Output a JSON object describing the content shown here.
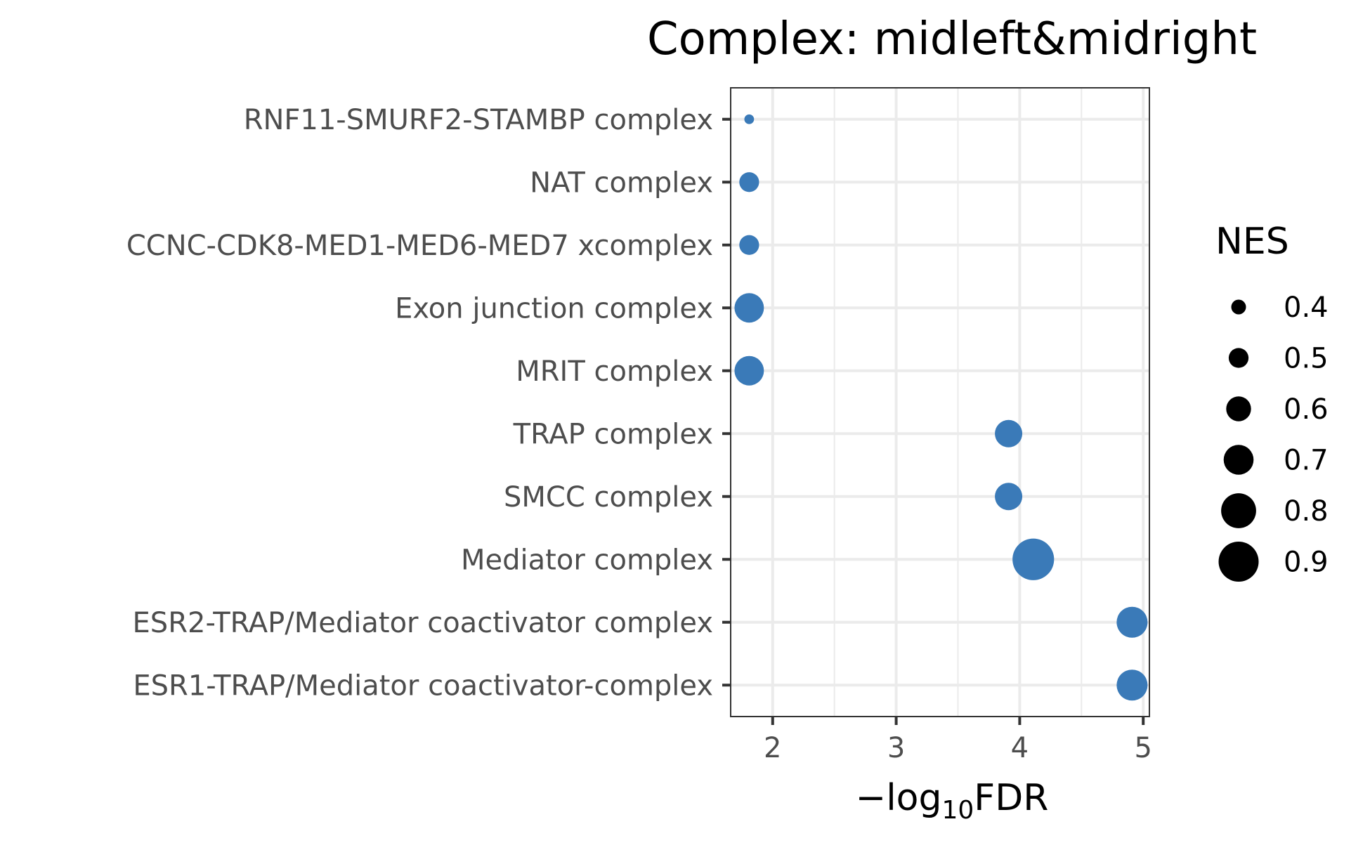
{
  "chart_data": {
    "type": "scatter",
    "title": "Complex: midleft&midright",
    "xlabel": {
      "prefix": "−log",
      "subscript": "10",
      "suffix": "FDR"
    },
    "ylabel": "",
    "xlim": [
      1.66,
      5.05
    ],
    "xticks": [
      2,
      3,
      4,
      5
    ],
    "categories": [
      "ESR1-TRAP/Mediator coactivator-complex",
      "ESR2-TRAP/Mediator coactivator complex",
      "Mediator complex",
      "SMCC complex",
      "TRAP complex",
      "MRIT complex",
      "Exon junction complex",
      "CCNC-CDK8-MED1-MED6-MED7 xcomplex",
      "NAT complex",
      "RNF11-SMURF2-STAMBP complex"
    ],
    "series": [
      {
        "points": [
          {
            "category": "ESR1-TRAP/Mediator coactivator-complex",
            "x": 4.91,
            "nes": 0.72
          },
          {
            "category": "ESR2-TRAP/Mediator coactivator complex",
            "x": 4.91,
            "nes": 0.72
          },
          {
            "category": "Mediator complex",
            "x": 4.11,
            "nes": 0.93
          },
          {
            "category": "SMCC complex",
            "x": 3.91,
            "nes": 0.65
          },
          {
            "category": "TRAP complex",
            "x": 3.91,
            "nes": 0.65
          },
          {
            "category": "MRIT complex",
            "x": 1.81,
            "nes": 0.69
          },
          {
            "category": "Exon junction complex",
            "x": 1.81,
            "nes": 0.69
          },
          {
            "category": "CCNC-CDK8-MED1-MED6-MED7 xcomplex",
            "x": 1.81,
            "nes": 0.5
          },
          {
            "category": "NAT complex",
            "x": 1.81,
            "nes": 0.5
          },
          {
            "category": "RNF11-SMURF2-STAMBP complex",
            "x": 1.81,
            "nes": 0.3
          }
        ]
      }
    ],
    "point_color": "#3a7ab8",
    "grid": true,
    "legend": {
      "title": "NES",
      "position": "right",
      "labels": [
        "0.4",
        "0.5",
        "0.6",
        "0.7",
        "0.8",
        "0.9"
      ],
      "values": [
        0.4,
        0.5,
        0.6,
        0.7,
        0.8,
        0.9
      ],
      "color": "#000000"
    }
  }
}
